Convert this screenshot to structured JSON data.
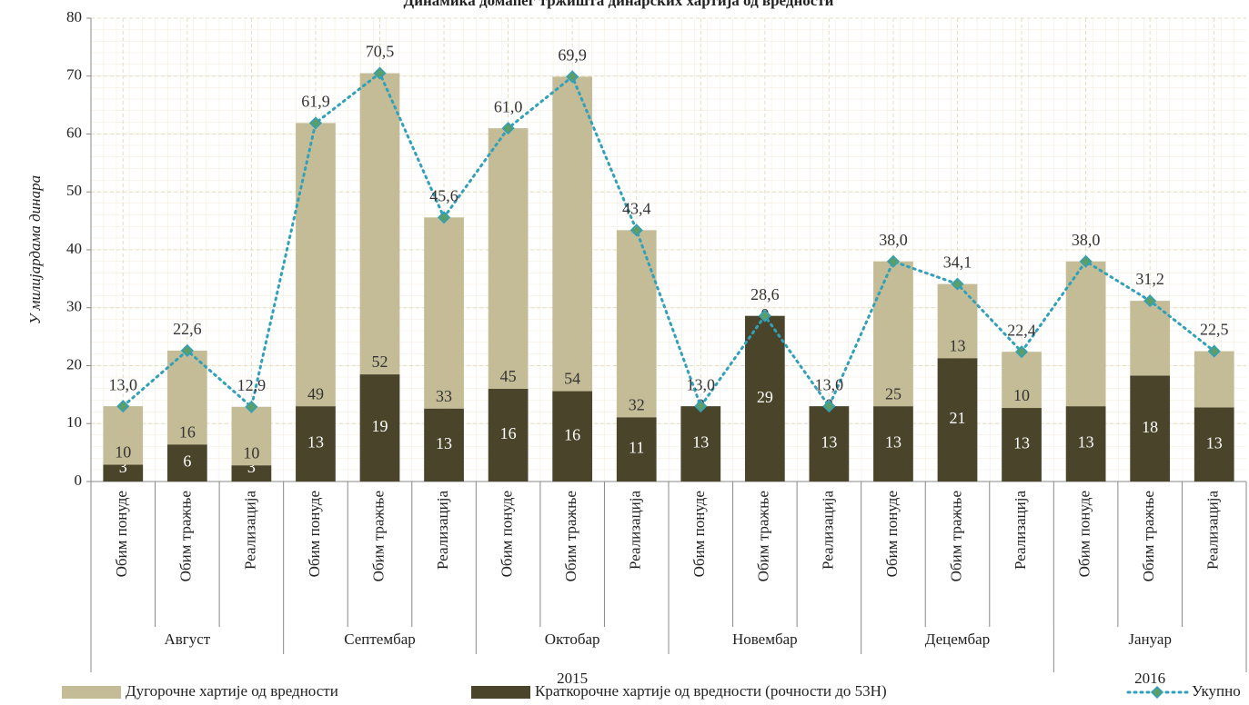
{
  "chart_data": {
    "type": "bar",
    "stacked": true,
    "title": "Динамика домаћег тржишта динарских хартија од вредности",
    "y_label": "У милијардама динара",
    "years": [
      {
        "label": "2015",
        "months": [
          {
            "label": "Август",
            "categories": [
              "Обим понуде",
              "Обим тражње",
              "Реализација"
            ]
          },
          {
            "label": "Септембар",
            "categories": [
              "Обим понуде",
              "Обим тражње",
              "Реализација"
            ]
          },
          {
            "label": "Октобар",
            "categories": [
              "Обим понуде",
              "Обим тражње",
              "Реализација"
            ]
          },
          {
            "label": "Новембар",
            "categories": [
              "Обим понуде",
              "Обим тражње",
              "Реализација"
            ]
          },
          {
            "label": "Децембар",
            "categories": [
              "Обим понуде",
              "Обим тражње",
              "Реализација"
            ]
          }
        ]
      },
      {
        "label": "2016",
        "months": [
          {
            "label": "Јануар",
            "categories": [
              "Обим понуде",
              "Обим тражње",
              "Реализација"
            ]
          }
        ]
      }
    ],
    "series": [
      {
        "name": "Дугорочне хартије од вредности",
        "color": "#c4bc96",
        "values": [
          10.1,
          16.2,
          10.1,
          48.9,
          52.0,
          33.0,
          45.0,
          54.3,
          32.3,
          0,
          0,
          0,
          25.0,
          12.8,
          9.7,
          25.0,
          12.9,
          9.7
        ],
        "value_labels": [
          "10",
          "16",
          "10",
          "49",
          "52",
          "33",
          "45",
          "54",
          "32",
          "0",
          "0",
          "0",
          "25",
          "13",
          "10",
          null,
          null,
          null
        ]
      },
      {
        "name": "Краткорочне хартије од вредности (рочности до 53Н)",
        "color": "#4a452a",
        "values": [
          2.9,
          6.4,
          2.8,
          13.0,
          18.5,
          12.6,
          16.0,
          15.6,
          11.1,
          13.0,
          28.6,
          13.0,
          13.0,
          21.3,
          12.7,
          13.0,
          18.3,
          12.8
        ],
        "value_labels": [
          "3",
          "6",
          "3",
          "13",
          "19",
          "13",
          "16",
          "16",
          "11",
          "13",
          "29",
          "13",
          "13",
          "21",
          "13",
          "13",
          "18",
          "13"
        ]
      },
      {
        "name": "Укупно",
        "type": "line",
        "color": "#31a0b9",
        "marker_color": "#5a9e6a",
        "values": [
          13.0,
          22.6,
          12.9,
          61.9,
          70.5,
          45.6,
          61.0,
          69.9,
          43.4,
          13.0,
          28.6,
          13.0,
          38.0,
          34.1,
          22.4,
          38.0,
          31.2,
          22.5
        ],
        "value_labels": [
          "13,0",
          "22,6",
          "12,9",
          "61,9",
          "70,5",
          "45,6",
          "61,0",
          "69,9",
          "43,4",
          "13,0",
          "28,6",
          "13,0",
          "38,0",
          "34,1",
          "22,4",
          "38,0",
          "31,2",
          "22,5"
        ]
      }
    ],
    "ylim": [
      0,
      80
    ],
    "yticks": [
      0,
      10,
      20,
      30,
      40,
      50,
      60,
      70,
      80
    ],
    "grid": true,
    "legend": "bottom"
  }
}
